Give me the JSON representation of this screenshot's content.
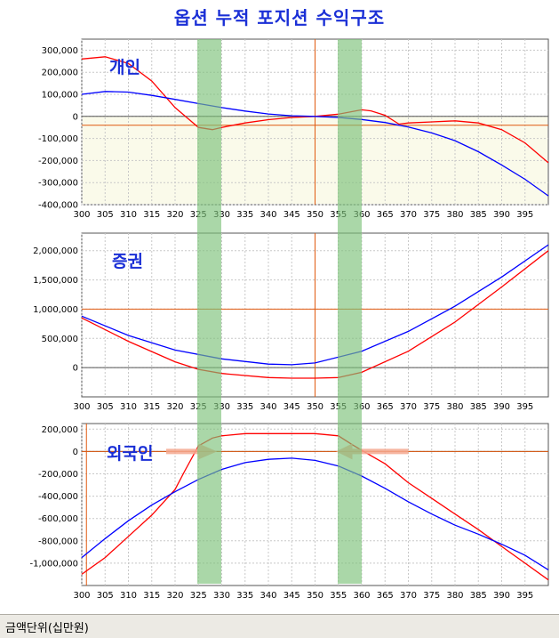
{
  "title": "옵션 누적 포지션 수익구조",
  "footer": "금액단위(십만원)",
  "colors": {
    "red": "#ff0000",
    "blue": "#0000ff",
    "band": "#7cc27a",
    "hline": "#e05a10",
    "shade": "#fafaea"
  },
  "chart_data": [
    {
      "type": "line",
      "label": "개인",
      "x_ticks": [
        300,
        305,
        310,
        315,
        320,
        325,
        330,
        335,
        340,
        345,
        350,
        355,
        360,
        365,
        370,
        375,
        380,
        385,
        390,
        395
      ],
      "xlim": [
        300,
        400
      ],
      "ylim": [
        -400000,
        350000
      ],
      "y_ticks": [
        300000,
        200000,
        100000,
        0,
        -100000,
        -200000,
        -300000,
        -400000
      ],
      "y_tick_labels": [
        "300,000",
        "200,000",
        "100,000",
        "0",
        "-100,000",
        "-200,000",
        "-300,000",
        "-400,000"
      ],
      "hline": -40000,
      "vline": 350,
      "series": [
        {
          "color": "red",
          "x": [
            300,
            305,
            310,
            315,
            320,
            325,
            328,
            330,
            335,
            340,
            345,
            350,
            355,
            360,
            362,
            365,
            368,
            370,
            375,
            380,
            385,
            390,
            395,
            400
          ],
          "y": [
            260000,
            270000,
            240000,
            160000,
            40000,
            -50000,
            -60000,
            -50000,
            -30000,
            -15000,
            -5000,
            0,
            10000,
            30000,
            25000,
            5000,
            -35000,
            -30000,
            -25000,
            -20000,
            -30000,
            -60000,
            -120000,
            -210000
          ]
        },
        {
          "color": "blue",
          "x": [
            300,
            305,
            310,
            315,
            320,
            325,
            330,
            335,
            340,
            345,
            350,
            355,
            360,
            365,
            370,
            375,
            380,
            385,
            390,
            395,
            400
          ],
          "y": [
            100000,
            113000,
            110000,
            95000,
            77000,
            58000,
            40000,
            24000,
            11000,
            3000,
            0,
            -5000,
            -14000,
            -28000,
            -48000,
            -75000,
            -110000,
            -160000,
            -220000,
            -285000,
            -360000
          ]
        }
      ]
    },
    {
      "type": "line",
      "label": "증권",
      "x_ticks": [
        300,
        305,
        310,
        315,
        320,
        325,
        330,
        335,
        340,
        345,
        350,
        355,
        360,
        365,
        370,
        375,
        380,
        385,
        390,
        395
      ],
      "xlim": [
        300,
        400
      ],
      "ylim": [
        -500000,
        2300000
      ],
      "y_ticks": [
        2000000,
        1500000,
        1000000,
        500000,
        0
      ],
      "y_tick_labels": [
        "2,000,000",
        "1,500,000",
        "1,000,000",
        "500,000",
        "0"
      ],
      "hline": 1000000,
      "vline": 350,
      "series": [
        {
          "color": "red",
          "x": [
            300,
            310,
            320,
            325,
            330,
            340,
            345,
            350,
            355,
            360,
            370,
            380,
            390,
            400
          ],
          "y": [
            850000,
            450000,
            100000,
            -30000,
            -100000,
            -170000,
            -180000,
            -180000,
            -170000,
            -80000,
            280000,
            780000,
            1380000,
            2000000
          ]
        },
        {
          "color": "blue",
          "x": [
            300,
            310,
            320,
            330,
            340,
            345,
            350,
            360,
            370,
            380,
            390,
            400
          ],
          "y": [
            880000,
            550000,
            300000,
            150000,
            60000,
            50000,
            80000,
            280000,
            620000,
            1050000,
            1550000,
            2100000
          ]
        }
      ]
    },
    {
      "type": "line",
      "label": "외국인",
      "x_ticks": [
        300,
        305,
        310,
        315,
        320,
        325,
        330,
        335,
        340,
        345,
        350,
        355,
        360,
        365,
        370,
        375,
        380,
        385,
        390,
        395
      ],
      "xlim": [
        300,
        400
      ],
      "ylim": [
        -1200000,
        250000
      ],
      "y_ticks": [
        200000,
        0,
        -200000,
        -400000,
        -600000,
        -800000,
        -1000000
      ],
      "y_tick_labels": [
        "200,000",
        "0",
        "-200,000",
        "-400,000",
        "-600,000",
        "-800,000",
        "-1,000,000"
      ],
      "hline": 0,
      "vline": 301,
      "series": [
        {
          "color": "red",
          "x": [
            300,
            305,
            310,
            315,
            320,
            322,
            325,
            328,
            330,
            335,
            340,
            345,
            350,
            355,
            358,
            360,
            365,
            370,
            375,
            380,
            385,
            390,
            395,
            400
          ],
          "y": [
            -1100000,
            -950000,
            -760000,
            -570000,
            -340000,
            -180000,
            50000,
            120000,
            140000,
            160000,
            160000,
            160000,
            160000,
            140000,
            60000,
            10000,
            -110000,
            -280000,
            -420000,
            -560000,
            -700000,
            -850000,
            -1000000,
            -1150000
          ]
        },
        {
          "color": "blue",
          "x": [
            300,
            305,
            310,
            315,
            320,
            325,
            330,
            335,
            340,
            345,
            350,
            355,
            360,
            365,
            370,
            375,
            380,
            385,
            390,
            395,
            400
          ],
          "y": [
            -950000,
            -780000,
            -620000,
            -480000,
            -360000,
            -250000,
            -160000,
            -100000,
            -70000,
            -60000,
            -80000,
            -130000,
            -220000,
            -330000,
            -450000,
            -560000,
            -660000,
            -740000,
            -830000,
            -930000,
            -1060000
          ]
        }
      ]
    }
  ]
}
